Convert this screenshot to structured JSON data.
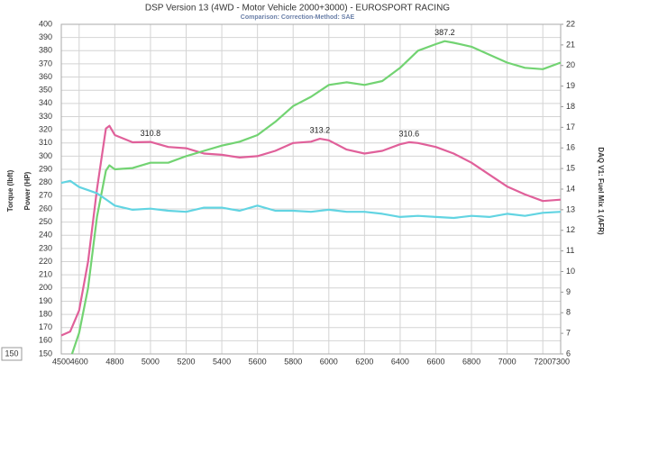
{
  "chart_data": {
    "type": "line",
    "title": "DSP Version 13 (4WD - Motor Vehicle 2000+3000) - EUROSPORT RACING",
    "subtitle": "Comparison:      Correction-Method: SAE",
    "y_labels": [
      "Torque (lbft)",
      "Power (HP)"
    ],
    "y2_label": "DAQ V1: Fuel Mix 1 (AFR)",
    "corner_label": "150",
    "xlim": [
      4500,
      7300
    ],
    "xticks": [
      4500,
      4600,
      4800,
      5000,
      5200,
      5400,
      5600,
      5800,
      6000,
      6200,
      6400,
      6600,
      6800,
      7000,
      7200,
      7300
    ],
    "ylim": [
      150,
      400
    ],
    "yticks": [
      150,
      160,
      170,
      180,
      190,
      200,
      210,
      220,
      230,
      240,
      250,
      260,
      270,
      280,
      290,
      300,
      310,
      320,
      330,
      340,
      350,
      360,
      370,
      380,
      390,
      400
    ],
    "y2lim": [
      6,
      22
    ],
    "y2ticks": [
      6,
      7,
      8,
      9,
      10,
      11,
      12,
      13,
      14,
      15,
      16,
      17,
      18,
      19,
      20,
      21,
      22
    ],
    "grid": true,
    "series": [
      {
        "name": "Torque",
        "color": "#e0609a",
        "x": [
          4500,
          4550,
          4600,
          4650,
          4700,
          4750,
          4770,
          4800,
          4900,
          5000,
          5100,
          5200,
          5300,
          5400,
          5500,
          5600,
          5700,
          5800,
          5900,
          5950,
          6000,
          6100,
          6200,
          6300,
          6400,
          6450,
          6500,
          6600,
          6700,
          6800,
          6900,
          7000,
          7100,
          7200,
          7300
        ],
        "values": [
          164,
          167,
          183,
          220,
          275,
          321,
          323,
          316,
          310.5,
          310.8,
          307,
          306,
          302,
          301,
          299,
          300,
          304,
          310,
          311,
          313.2,
          312,
          305,
          302,
          304,
          309,
          310.6,
          310,
          307,
          302,
          295,
          286,
          277,
          271,
          266,
          267
        ]
      },
      {
        "name": "Power",
        "color": "#72d372",
        "x": [
          4560,
          4600,
          4650,
          4700,
          4750,
          4770,
          4800,
          4900,
          5000,
          5100,
          5200,
          5300,
          5400,
          5500,
          5600,
          5700,
          5800,
          5900,
          6000,
          6100,
          6200,
          6300,
          6400,
          6500,
          6600,
          6650,
          6700,
          6800,
          6900,
          7000,
          7100,
          7200,
          7300
        ],
        "values": [
          150,
          166,
          200,
          254,
          289,
          293,
          290,
          291,
          295,
          295,
          300,
          304,
          308,
          311,
          316,
          326,
          338,
          345,
          354,
          356,
          354,
          357,
          367,
          380,
          385,
          387.2,
          386,
          383,
          377,
          371,
          367,
          366,
          371
        ]
      },
      {
        "name": "AFR",
        "color": "#62d4e2",
        "axis": "y2",
        "x": [
          4500,
          4550,
          4600,
          4700,
          4750,
          4800,
          4900,
          5000,
          5100,
          5200,
          5300,
          5400,
          5500,
          5600,
          5700,
          5800,
          5900,
          6000,
          6100,
          6200,
          6300,
          6400,
          6500,
          6600,
          6700,
          6800,
          6900,
          7000,
          7100,
          7200,
          7300
        ],
        "values": [
          14.3,
          14.4,
          14.1,
          13.8,
          13.5,
          13.2,
          13.0,
          13.05,
          12.95,
          12.9,
          13.1,
          13.1,
          12.95,
          13.2,
          12.95,
          12.95,
          12.9,
          13.0,
          12.9,
          12.9,
          12.8,
          12.65,
          12.7,
          12.65,
          12.6,
          12.7,
          12.65,
          12.8,
          12.7,
          12.85,
          12.9
        ]
      }
    ],
    "annotations": [
      {
        "x": 5000,
        "value": 310.8
      },
      {
        "x": 5950,
        "value": 313.2
      },
      {
        "x": 6450,
        "value": 310.6
      },
      {
        "x": 6650,
        "value": 387.2
      }
    ]
  }
}
